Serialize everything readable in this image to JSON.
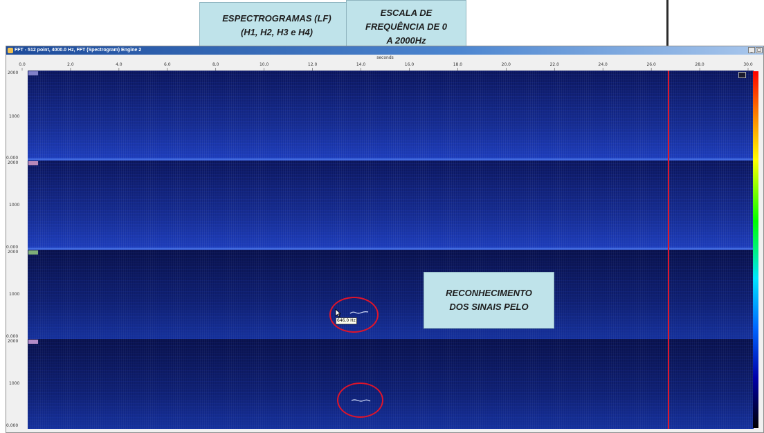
{
  "annotations": {
    "spectrograms": "ESPECTROGRAMAS (LF)\n(H1, H2, H3 e H4)",
    "frequency_scale": "ESCALA DE\nFREQUÊNCIA DE 0\nA 2000Hz",
    "recognition": "RECONHECIMENTO\nDOS SINAIS PELO"
  },
  "window": {
    "title": "FFT - 512 point, 4000.0 Hz, FFT (Spectrogram) Engine 2",
    "minimize_label": "_",
    "restore_label": "□"
  },
  "axis": {
    "xlabel": "seconds",
    "x_ticks": [
      "0.0",
      "2.0",
      "4.0",
      "6.0",
      "8.0",
      "10.0",
      "12.0",
      "14.0",
      "16.0",
      "18.0",
      "20.0",
      "22.0",
      "24.0",
      "26.0",
      "28.0",
      "30.0"
    ],
    "y_top": "2000",
    "y_mid": "1000",
    "y_bottom": "0.000"
  },
  "channels": [
    {
      "id": "H1",
      "color": "#8080c8"
    },
    {
      "id": "H2",
      "color": "#b888b8"
    },
    {
      "id": "H3",
      "color": "#7fae78"
    },
    {
      "id": "H4",
      "color": "#b48cc8"
    }
  ],
  "cursor": {
    "time_seconds": 26.7,
    "color": "#e0162b"
  },
  "tooltip": {
    "text": "646.0 Hz"
  },
  "colorbar": {
    "colors": [
      "#ff0000",
      "#ff7f00",
      "#ffff00",
      "#00ff00",
      "#00e5ff",
      "#0066ff",
      "#0000aa",
      "#000000"
    ]
  },
  "highlight_color": "#e0142a"
}
